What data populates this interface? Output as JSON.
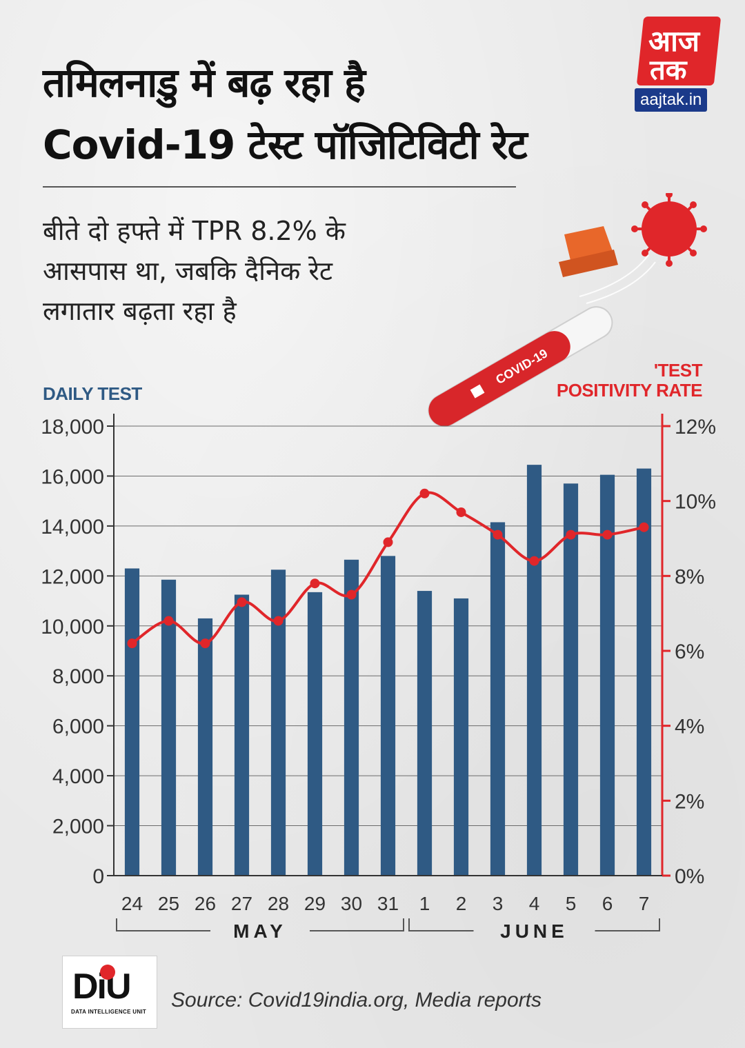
{
  "logo": {
    "line1": "आज",
    "line2": "तक",
    "website": "aajtak.in"
  },
  "title": {
    "line1": "तमिलनाडु में बढ़ रहा है",
    "line2": "Covid-19 टेस्ट पॉजिटिविटी  रेट"
  },
  "subtitle": {
    "line1": "बीते दो हफ्ते में TPR 8.2% के",
    "line2": "आसपास था, जबकि दैनिक रेट",
    "line3": "लगातार बढ़ता रहा है"
  },
  "illustration": {
    "tube_label": "COVID-19"
  },
  "footer": {
    "unit_short": "DiU",
    "unit_full": "DATA INTELLIGENCE UNIT",
    "source": "Source: Covid19india.org, Media reports"
  },
  "colors": {
    "bar": "#2f5a84",
    "line": "#e0262a",
    "left_axis_title": "#2f5a84",
    "right_axis_title": "#e0262a"
  },
  "chart_data": {
    "type": "bar",
    "title": "",
    "ylabel": "DAILY TEST",
    "y2label_line1": "'TEST",
    "y2label_line2": "POSITIVITY RATE",
    "categories": [
      "24",
      "25",
      "26",
      "27",
      "28",
      "29",
      "30",
      "31",
      "1",
      "2",
      "3",
      "4",
      "5",
      "6",
      "7"
    ],
    "months": [
      {
        "name": "MAY",
        "from": 0,
        "to": 7
      },
      {
        "name": "JUNE",
        "from": 8,
        "to": 14
      }
    ],
    "ylim": [
      0,
      18000
    ],
    "yticks": [
      "0",
      "2,000",
      "4,000",
      "6,000",
      "8,000",
      "10,000",
      "12,000",
      "14,000",
      "16,000",
      "18,000"
    ],
    "y2lim": [
      0,
      12
    ],
    "y2ticks": [
      "0%",
      "2%",
      "4%",
      "6%",
      "8%",
      "10%",
      "12%"
    ],
    "series": [
      {
        "name": "Daily Test",
        "type": "bar",
        "axis": "left",
        "values": [
          12300,
          11850,
          10300,
          11250,
          12250,
          11350,
          12650,
          12800,
          11400,
          11100,
          14150,
          16450,
          15700,
          16050,
          16300
        ]
      },
      {
        "name": "Test Positivity Rate",
        "type": "line",
        "axis": "right",
        "unit": "%",
        "values": [
          6.2,
          6.8,
          6.2,
          7.3,
          6.8,
          7.8,
          7.5,
          8.9,
          10.2,
          9.7,
          9.1,
          8.4,
          9.1,
          9.1,
          9.3
        ]
      }
    ]
  }
}
